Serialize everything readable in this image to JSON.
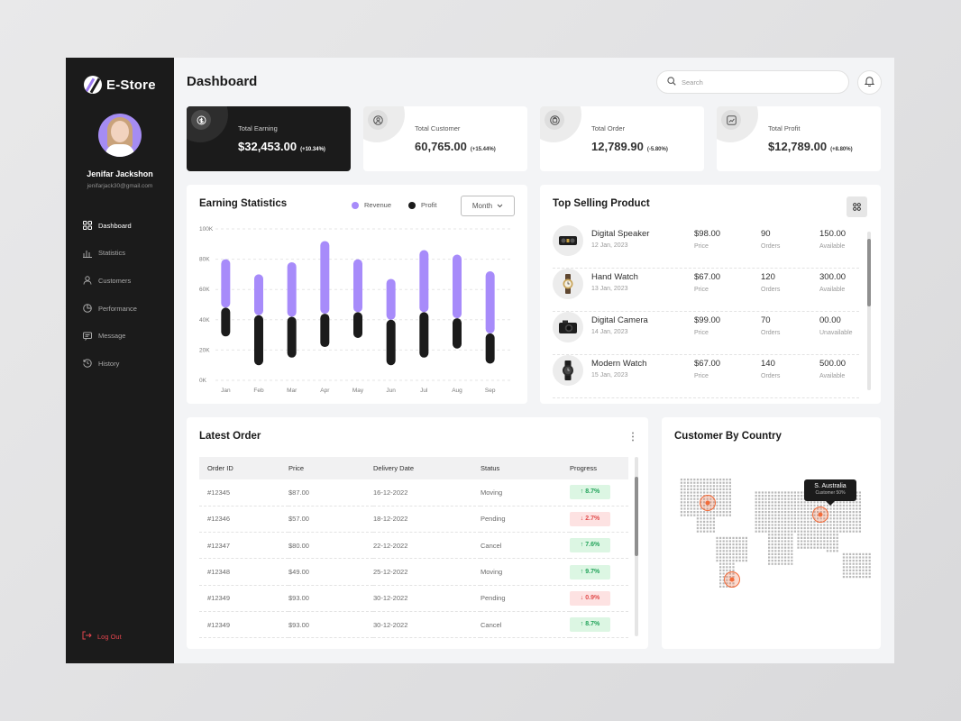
{
  "brand": {
    "name": "E-Store"
  },
  "user": {
    "name": "Jenifar Jackshon",
    "email": "jenifarjack30@gmail.com"
  },
  "sidebar": {
    "items": [
      {
        "label": "Dashboard",
        "icon": "dashboard-grid-icon",
        "active": true
      },
      {
        "label": "Statistics",
        "icon": "bar-chart-icon",
        "active": false
      },
      {
        "label": "Customers",
        "icon": "user-icon",
        "active": false
      },
      {
        "label": "Performance",
        "icon": "pie-chart-icon",
        "active": false
      },
      {
        "label": "Message",
        "icon": "message-icon",
        "active": false
      },
      {
        "label": "History",
        "icon": "history-icon",
        "active": false
      }
    ],
    "logout": "Log Out"
  },
  "header": {
    "title": "Dashboard",
    "search_placeholder": "Search"
  },
  "stats": [
    {
      "label": "Total Earning",
      "value": "$32,453.00",
      "delta": "(+10.34%)"
    },
    {
      "label": "Total Customer",
      "value": "60,765.00",
      "delta": "(+15.44%)"
    },
    {
      "label": "Total Order",
      "value": "12,789.90",
      "delta": "(-5.80%)"
    },
    {
      "label": "Total Profit",
      "value": "$12,789.00",
      "delta": "(+8.80%)"
    }
  ],
  "earning": {
    "title": "Earning Statistics",
    "legend_revenue": "Revenue",
    "legend_profit": "Profit",
    "period": "Month",
    "colors": {
      "revenue": "#a78bfa",
      "profit": "#1b1b1b"
    }
  },
  "chart_data": {
    "type": "bar",
    "categories": [
      "Jan",
      "Feb",
      "Mar",
      "Apr",
      "May",
      "Jun",
      "Jul",
      "Aug",
      "Sep"
    ],
    "series": [
      {
        "name": "Revenue",
        "top": [
          80,
          70,
          78,
          92,
          80,
          67,
          86,
          83,
          72
        ],
        "bottom": [
          48,
          43,
          42,
          44,
          45,
          40,
          45,
          41,
          31
        ]
      },
      {
        "name": "Profit",
        "top": [
          48,
          43,
          42,
          44,
          45,
          40,
          45,
          41,
          31
        ],
        "bottom": [
          29,
          10,
          15,
          22,
          28,
          10,
          15,
          21,
          11
        ]
      }
    ],
    "yticks": [
      "0K",
      "20K",
      "40K",
      "60K",
      "80K",
      "100K"
    ],
    "ylim": [
      0,
      100
    ],
    "grid": true
  },
  "top_selling": {
    "title": "Top Selling Product",
    "price_label": "Price",
    "orders_label": "Orders",
    "products": [
      {
        "name": "Digital Speaker",
        "date": "12 Jan, 2023",
        "price": "$98.00",
        "orders": "90",
        "stock": "150.00",
        "status": "Available"
      },
      {
        "name": "Hand Watch",
        "date": "13 Jan, 2023",
        "price": "$67.00",
        "orders": "120",
        "stock": "300.00",
        "status": "Available"
      },
      {
        "name": "Digital Camera",
        "date": "14 Jan, 2023",
        "price": "$99.00",
        "orders": "70",
        "stock": "00.00",
        "status": "Unavailable"
      },
      {
        "name": "Modern Watch",
        "date": "15 Jan, 2023",
        "price": "$67.00",
        "orders": "140",
        "stock": "500.00",
        "status": "Available"
      }
    ]
  },
  "latest_order": {
    "title": "Latest Order",
    "columns": [
      "Order ID",
      "Price",
      "Delivery Date",
      "Status",
      "Progress"
    ],
    "rows": [
      {
        "id": "#12345",
        "price": "$87.00",
        "date": "16-12-2022",
        "status": "Moving",
        "progress": "↑ 8.7%",
        "up": true
      },
      {
        "id": "#12346",
        "price": "$57.00",
        "date": "18-12-2022",
        "status": "Pending",
        "progress": "↓ 2.7%",
        "up": false
      },
      {
        "id": "#12347",
        "price": "$80.00",
        "date": "22-12-2022",
        "status": "Cancel",
        "progress": "↑ 7.6%",
        "up": true
      },
      {
        "id": "#12348",
        "price": "$49.00",
        "date": "25-12-2022",
        "status": "Moving",
        "progress": "↑ 9.7%",
        "up": true
      },
      {
        "id": "#12349",
        "price": "$93.00",
        "date": "30-12-2022",
        "status": "Pending",
        "progress": "↓ 0.9%",
        "up": false
      },
      {
        "id": "#12349",
        "price": "$93.00",
        "date": "30-12-2022",
        "status": "Cancel",
        "progress": "↑ 8.7%",
        "up": true
      }
    ]
  },
  "country": {
    "title": "Customer By Country",
    "tooltip_title": "S. Australia",
    "tooltip_sub": "Customer 50%",
    "marker_color": "#f26b3a"
  }
}
